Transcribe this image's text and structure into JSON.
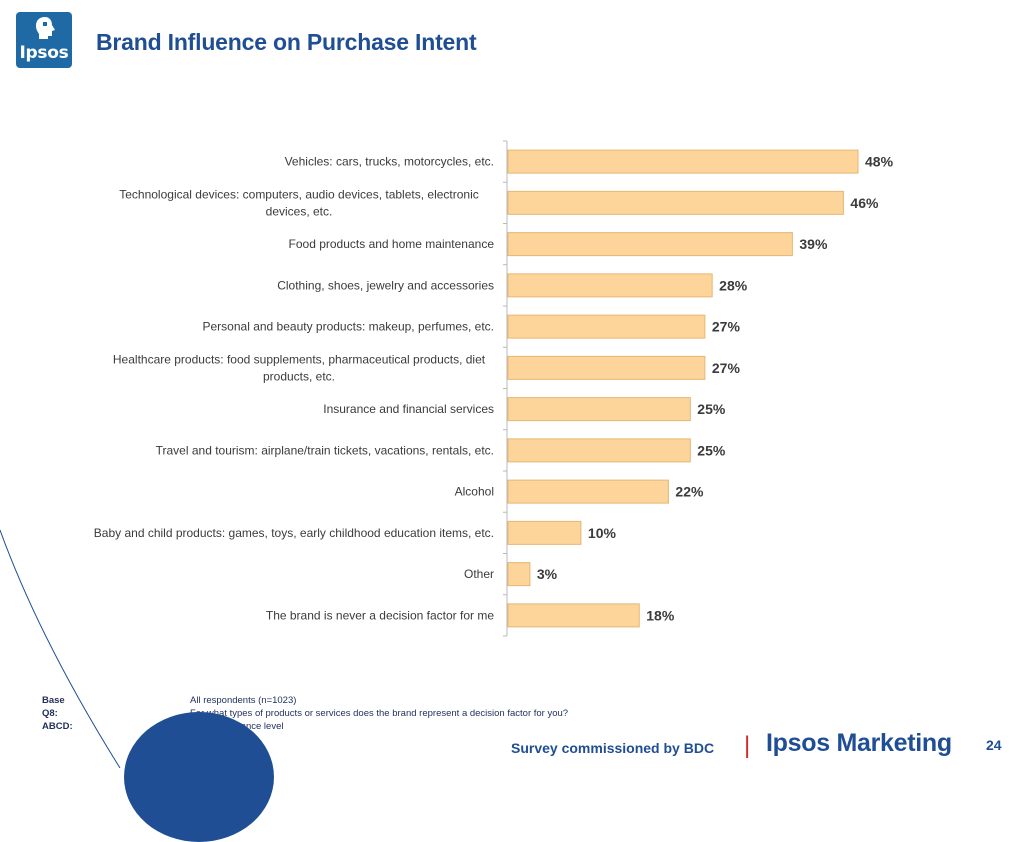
{
  "header": {
    "logo_text": "Ipsos",
    "title": "Brand Influence on Purchase Intent"
  },
  "chart_data": {
    "type": "bar",
    "orientation": "horizontal",
    "categories": [
      [
        "Vehicles: cars, trucks, motorcycles, etc."
      ],
      [
        "Technological devices: computers, audio devices, tablets, electronic",
        "devices, etc."
      ],
      [
        "Food products and home maintenance"
      ],
      [
        "Clothing, shoes, jewelry and accessories"
      ],
      [
        "Personal and beauty products: makeup, perfumes, etc."
      ],
      [
        "Healthcare products: food supplements, pharmaceutical products, diet",
        "products, etc."
      ],
      [
        "Insurance and financial services"
      ],
      [
        "Travel and tourism: airplane/train tickets, vacations, rentals, etc."
      ],
      [
        "Alcohol"
      ],
      [
        "Baby and child products: games, toys, early childhood education items, etc."
      ],
      [
        "Other"
      ],
      [
        "The brand is never a decision factor for me"
      ]
    ],
    "values": [
      48,
      46,
      39,
      28,
      27,
      27,
      25,
      25,
      22,
      10,
      3,
      18
    ],
    "value_labels": [
      "48%",
      "46%",
      "39%",
      "28%",
      "27%",
      "27%",
      "25%",
      "25%",
      "22%",
      "10%",
      "3%",
      "18%"
    ],
    "xlim": [
      0,
      48
    ],
    "grid": false,
    "bar_color": "#fdd59a",
    "bar_border_color": "#e6b673"
  },
  "notes": [
    {
      "key": "Base",
      "value": "All respondents (n=1023)"
    },
    {
      "key": "Q8:",
      "value": "For what types of products or services does the brand represent a decision factor for you?"
    },
    {
      "key": "ABCD:",
      "value": "95% significance level"
    }
  ],
  "footer": {
    "survey_text": "Survey commissioned by BDC",
    "separator": "|",
    "brand": "Ipsos Marketing",
    "page_number": "24"
  },
  "colors": {
    "title": "#1f4e95",
    "logo_bg": "#1f6aa5",
    "separator": "#d12c2c"
  }
}
